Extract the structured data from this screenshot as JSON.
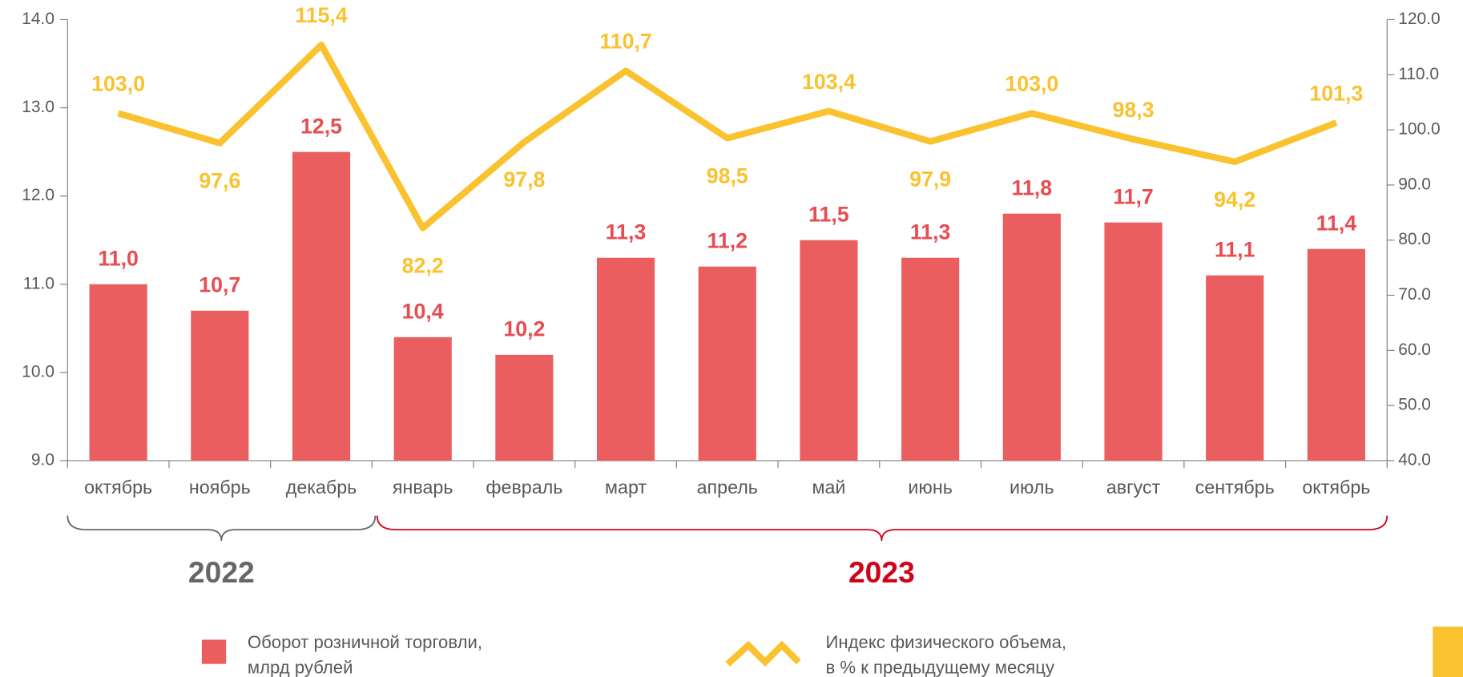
{
  "chart_data": {
    "type": "bar-line",
    "categories": [
      "октябрь",
      "ноябрь",
      "декабрь",
      "январь",
      "февраль",
      "март",
      "апрель",
      "май",
      "июнь",
      "июль",
      "август",
      "сентябрь",
      "октябрь"
    ],
    "groups": [
      {
        "label": "2022",
        "color": "#666666"
      },
      {
        "label": "2023",
        "color": "#d0021b"
      }
    ],
    "series": [
      {
        "name": "Оборот розничной торговли, млрд рублей",
        "color": "#eb5e60",
        "type": "bar",
        "values": [
          11.0,
          10.7,
          12.5,
          10.4,
          10.2,
          11.3,
          11.2,
          11.5,
          11.3,
          11.8,
          11.7,
          11.1,
          11.4
        ],
        "value_labels": [
          "11,0",
          "10,7",
          "12,5",
          "10,4",
          "10,2",
          "11,3",
          "11,2",
          "11,5",
          "11,3",
          "11,8",
          "11,7",
          "11,1",
          "11,4"
        ]
      },
      {
        "name": "Индекс физического объема, в % к предыдущему месяцу",
        "color": "#f9c22e",
        "type": "line",
        "axis": "y2",
        "values": [
          103.0,
          97.6,
          115.4,
          82.2,
          97.8,
          110.7,
          98.5,
          103.4,
          97.9,
          103.0,
          98.3,
          94.2,
          101.3
        ],
        "value_labels": [
          "103,0",
          "97,6",
          "115,4",
          "82,2",
          "97,8",
          "110,7",
          "98,5",
          "103,4",
          "97,9",
          "103,0",
          "98,3",
          "94,2",
          "101,3"
        ]
      }
    ],
    "ylim": [
      9,
      14
    ],
    "yticks": [
      {
        "value": 9,
        "label": "9.0"
      },
      {
        "value": 10,
        "label": "10.0"
      },
      {
        "value": 11,
        "label": "11.0"
      },
      {
        "value": 12,
        "label": "12.0"
      },
      {
        "value": 13,
        "label": "13.0"
      },
      {
        "value": 14,
        "label": "14.0"
      }
    ],
    "y2lim": [
      40,
      120
    ],
    "y2ticks": [
      {
        "value": 40,
        "label": "40.0"
      },
      {
        "value": 50,
        "label": "50.0"
      },
      {
        "value": 60,
        "label": "60.0"
      },
      {
        "value": 70,
        "label": "70.0"
      },
      {
        "value": 80,
        "label": "80.0"
      },
      {
        "value": 90,
        "label": "90.0"
      },
      {
        "value": 100,
        "label": "100.0"
      },
      {
        "value": 110,
        "label": "110.0"
      },
      {
        "value": 120,
        "label": "120.0"
      }
    ]
  }
}
